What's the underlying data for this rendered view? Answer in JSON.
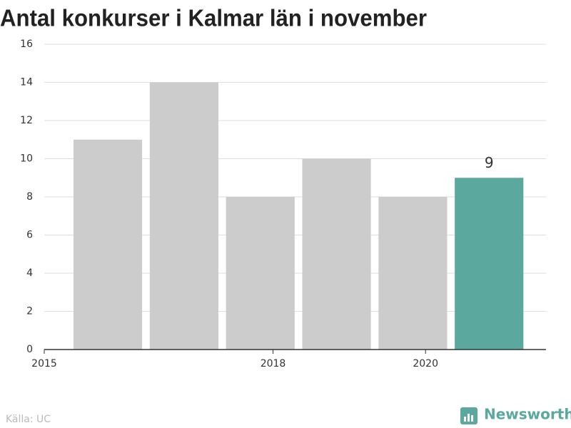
{
  "chart_data": {
    "type": "bar",
    "title": "Antal konkurser i Kalmar län i november",
    "x": [
      "2015-11",
      "2016-11",
      "2017-11",
      "2018-11",
      "2019-11",
      "2020-11"
    ],
    "values": [
      11,
      14,
      8,
      10,
      8,
      9
    ],
    "value_labels": [
      null,
      null,
      null,
      null,
      null,
      "9"
    ],
    "colors": [
      "#cccccc",
      "#cccccc",
      "#cccccc",
      "#cccccc",
      "#cccccc",
      "#5ba89e"
    ],
    "xlim": [
      2015,
      2021.58
    ],
    "xticks": [
      2015,
      2018,
      2020
    ],
    "ylim": [
      0,
      16
    ],
    "yticks": [
      0,
      2,
      4,
      6,
      8,
      10,
      12,
      14,
      16
    ],
    "grid": true,
    "source": "Källa: UC",
    "brand": "Newsworthy"
  }
}
